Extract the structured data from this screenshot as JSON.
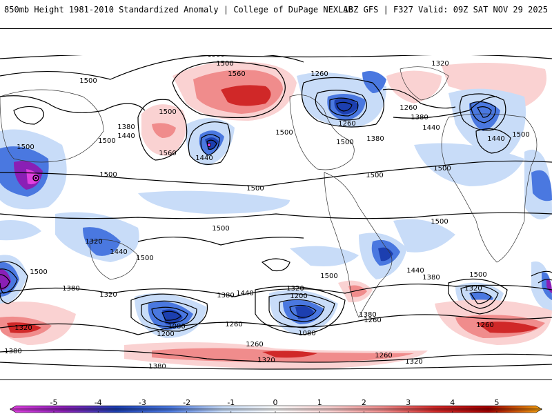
{
  "header": {
    "title": "850mb Height 1981-2010 Standardized Anomaly | College of DuPage NEXLAB",
    "run_info": "18Z GFS | F327 Valid: 09Z SAT NOV 29 2025"
  },
  "colorbar": {
    "ticks": [
      "-5",
      "-4",
      "-3",
      "-2",
      "-1",
      "0",
      "1",
      "2",
      "3",
      "4",
      "5"
    ],
    "colors": [
      "#e040e0",
      "#8a1fb5",
      "#1c3fb0",
      "#4a78e0",
      "#c8dcf8",
      "#ffffff",
      "#fad2d2",
      "#f08c8c",
      "#d02828",
      "#a00000",
      "#f0a010"
    ]
  },
  "map": {
    "contour_labels": [
      "1320",
      "1380",
      "1500",
      "1560",
      "1260",
      "1320",
      "1260",
      "1380",
      "1440",
      "1500",
      "1260",
      "1500",
      "1380",
      "1440",
      "1500",
      "1500",
      "1560",
      "1440",
      "1500",
      "1500",
      "1500",
      "1500",
      "1500",
      "1500",
      "1500",
      "1500",
      "1440",
      "1500",
      "1440",
      "1380",
      "1320",
      "1380",
      "1440",
      "1320",
      "1200",
      "1080",
      "1260",
      "1200",
      "1080",
      "1380",
      "1260",
      "1320",
      "1260",
      "1320",
      "1260",
      "1320",
      "1380",
      "1320",
      "1380",
      "1260",
      "1500",
      "1380",
      "1500",
      "1440",
      "1500",
      "1500",
      "1380",
      "1320"
    ]
  }
}
